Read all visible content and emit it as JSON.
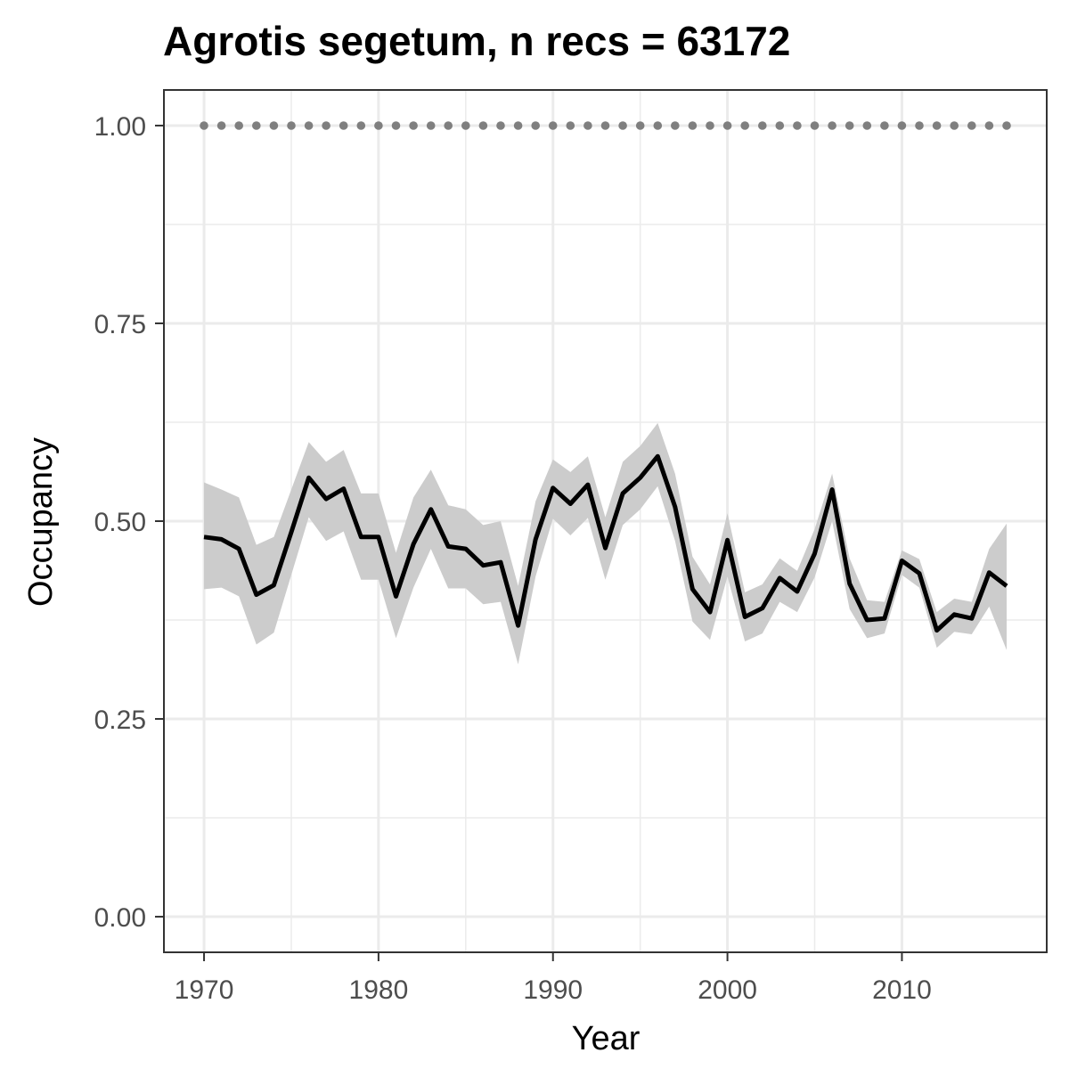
{
  "chart_data": {
    "type": "line",
    "title": "Agrotis segetum, n recs = 63172",
    "xlabel": "Year",
    "ylabel": "Occupancy",
    "xlim": [
      1967.7,
      1918.3
    ],
    "ylim": [
      -0.045,
      1.045
    ],
    "x_ticks": [
      "1970",
      "1980",
      "1990",
      "2000",
      "2010"
    ],
    "x_tick_values": [
      1970,
      1980,
      1990,
      2000,
      2010
    ],
    "y_ticks": [
      "0.00",
      "0.25",
      "0.50",
      "0.75",
      "1.00"
    ],
    "y_tick_values": [
      0,
      0.25,
      0.5,
      0.75,
      1.0
    ],
    "grid": true,
    "legend": "none",
    "colors": {
      "line": "#000000",
      "ribbon": "#cccccc",
      "dots": "#7f7f7f",
      "grid": "#ebebeb",
      "panel_border": "#333333"
    },
    "series": [
      {
        "x": [
          1970,
          1971,
          1972,
          1973,
          1974,
          1975,
          1976,
          1977,
          1978,
          1979,
          1980,
          1981,
          1982,
          1983,
          1984,
          1985,
          1986,
          1987,
          1988,
          1989,
          1990,
          1991,
          1992,
          1993,
          1994,
          1995,
          1996,
          1997,
          1998,
          1999,
          2000,
          2001,
          2002,
          2003,
          2004,
          2005,
          2006,
          2007,
          2008,
          2009,
          2010,
          2011,
          2012,
          2013,
          2014,
          2015,
          2016
        ],
        "y": [
          0.48,
          0.477,
          0.465,
          0.407,
          0.419,
          0.486,
          0.555,
          0.528,
          0.541,
          0.48,
          0.48,
          0.405,
          0.471,
          0.515,
          0.468,
          0.465,
          0.444,
          0.448,
          0.368,
          0.477,
          0.542,
          0.522,
          0.546,
          0.466,
          0.535,
          0.555,
          0.582,
          0.518,
          0.414,
          0.385,
          0.476,
          0.379,
          0.39,
          0.428,
          0.411,
          0.459,
          0.54,
          0.421,
          0.375,
          0.377,
          0.45,
          0.434,
          0.362,
          0.382,
          0.377,
          0.435,
          0.418
        ],
        "lower": [
          0.414,
          0.416,
          0.405,
          0.344,
          0.359,
          0.432,
          0.505,
          0.475,
          0.487,
          0.426,
          0.426,
          0.352,
          0.416,
          0.465,
          0.415,
          0.415,
          0.395,
          0.398,
          0.319,
          0.43,
          0.503,
          0.482,
          0.504,
          0.426,
          0.495,
          0.515,
          0.544,
          0.475,
          0.373,
          0.35,
          0.43,
          0.348,
          0.358,
          0.398,
          0.385,
          0.429,
          0.5,
          0.389,
          0.352,
          0.358,
          0.432,
          0.416,
          0.34,
          0.36,
          0.357,
          0.392,
          0.337
        ],
        "upper": [
          0.549,
          0.54,
          0.53,
          0.47,
          0.48,
          0.54,
          0.6,
          0.575,
          0.59,
          0.535,
          0.535,
          0.46,
          0.53,
          0.565,
          0.52,
          0.515,
          0.495,
          0.5,
          0.418,
          0.525,
          0.578,
          0.562,
          0.582,
          0.505,
          0.575,
          0.595,
          0.624,
          0.56,
          0.455,
          0.42,
          0.51,
          0.41,
          0.42,
          0.453,
          0.437,
          0.49,
          0.56,
          0.453,
          0.4,
          0.398,
          0.463,
          0.452,
          0.385,
          0.402,
          0.398,
          0.465,
          0.497
        ]
      },
      {
        "x": [
          1970,
          1971,
          1972,
          1973,
          1974,
          1975,
          1976,
          1977,
          1978,
          1979,
          1980,
          1981,
          1982,
          1983,
          1984,
          1985,
          1986,
          1987,
          1988,
          1989,
          1990,
          1991,
          1992,
          1993,
          1994,
          1995,
          1996,
          1997,
          1998,
          1999,
          2000,
          2001,
          2002,
          2003,
          2004,
          2005,
          2006,
          2007,
          2008,
          2009,
          2010,
          2011,
          2012,
          2013,
          2014,
          2015,
          2016
        ],
        "y": [
          1,
          1,
          1,
          1,
          1,
          1,
          1,
          1,
          1,
          1,
          1,
          1,
          1,
          1,
          1,
          1,
          1,
          1,
          1,
          1,
          1,
          1,
          1,
          1,
          1,
          1,
          1,
          1,
          1,
          1,
          1,
          1,
          1,
          1,
          1,
          1,
          1,
          1,
          1,
          1,
          1,
          1,
          1,
          1,
          1,
          1,
          1
        ]
      }
    ]
  }
}
